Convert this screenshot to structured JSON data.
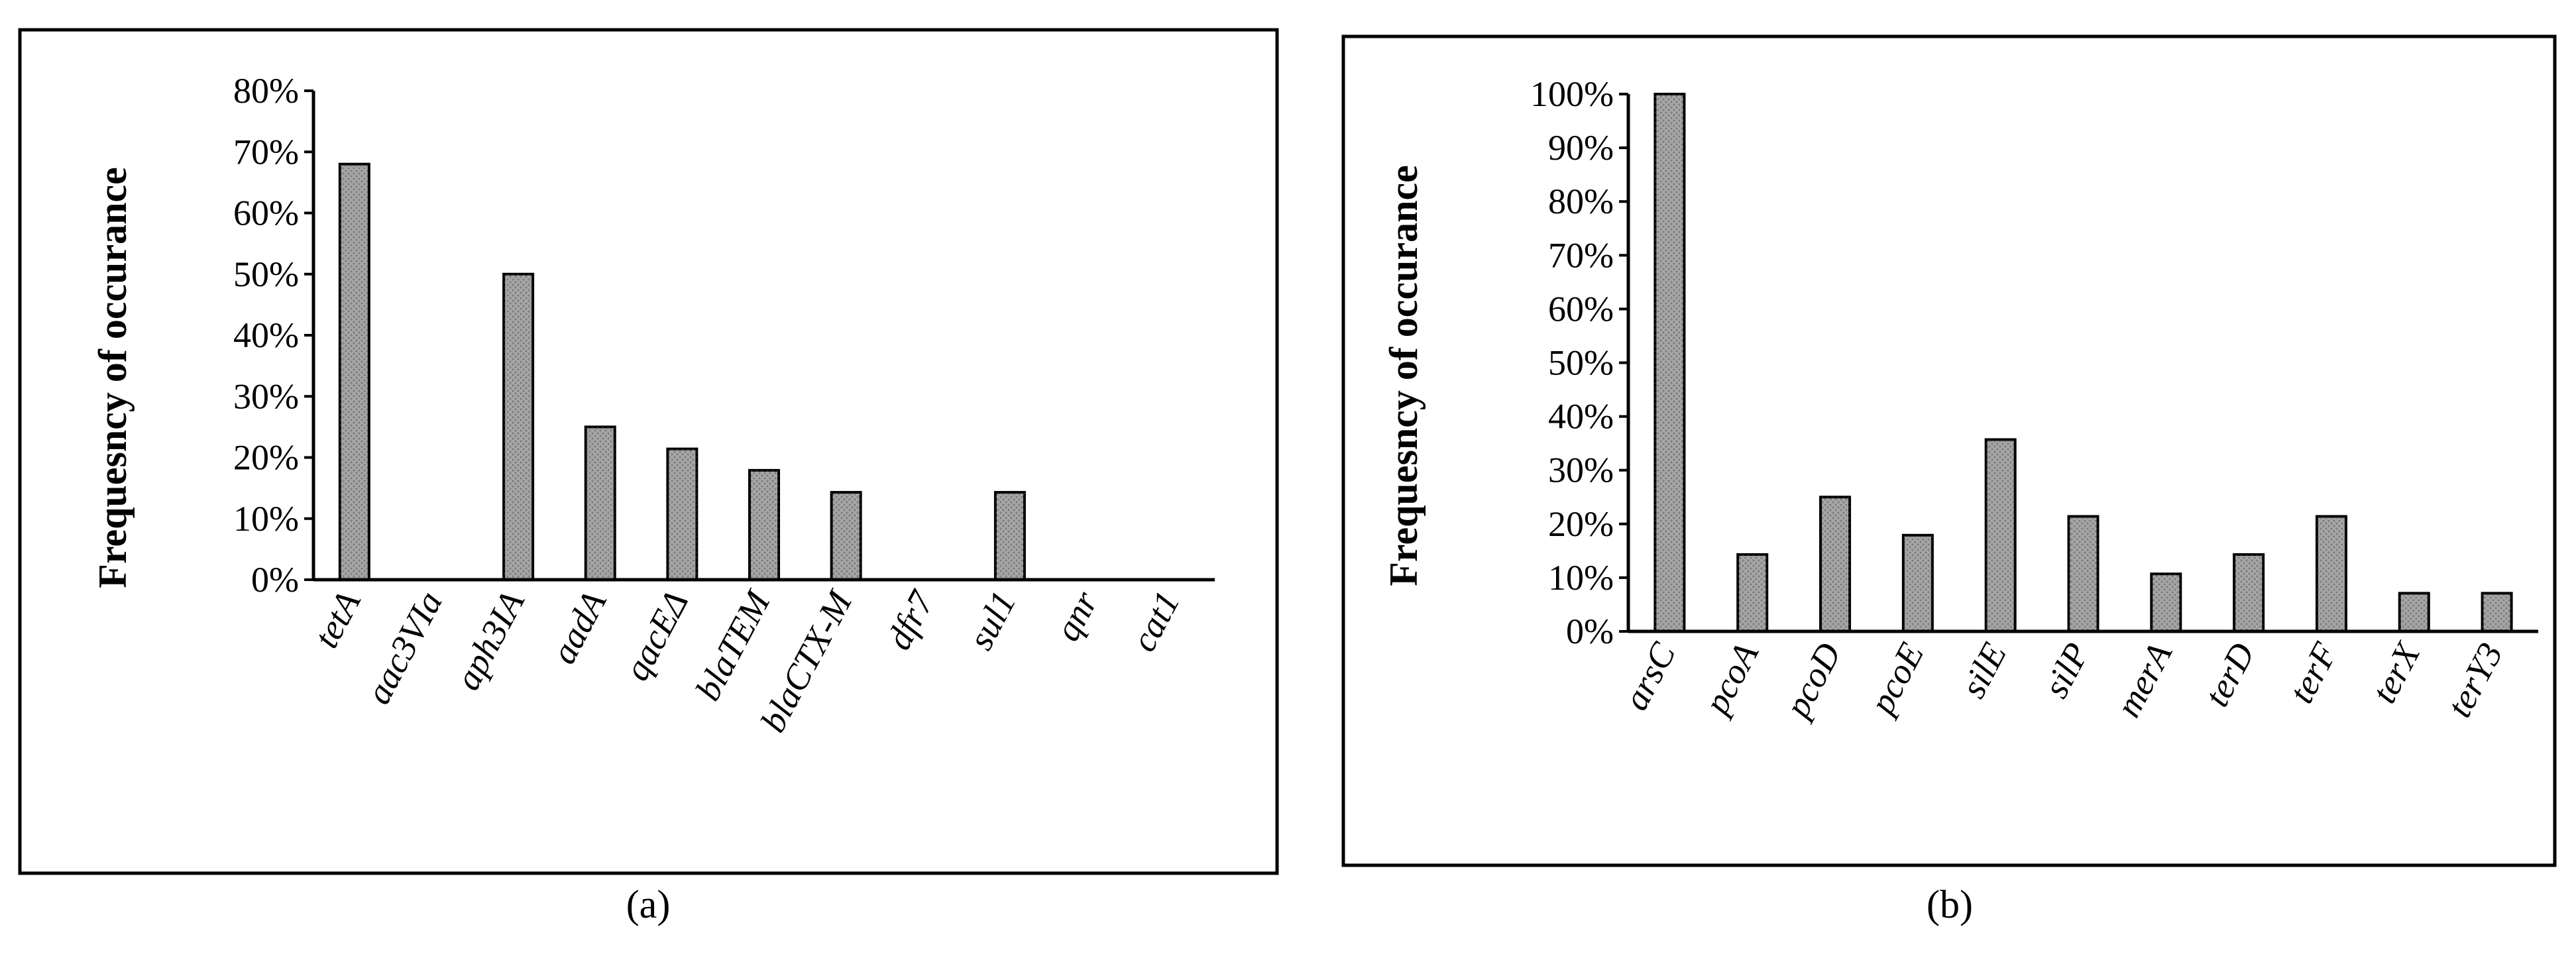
{
  "chart_data": [
    {
      "type": "bar",
      "panel_label": "(a)",
      "y_label": "Frequesncy of occurance",
      "color": "#a6a6a6",
      "categories": [
        "tetA",
        "aac3VIa",
        "aph3IA",
        "aadA",
        "qacEΔ",
        "blaTEM",
        "blaCTX-M",
        "dfr7",
        "sul1",
        "qnr",
        "cat1"
      ],
      "values": [
        68,
        0,
        50,
        25,
        21.4,
        17.9,
        14.3,
        0,
        14.3,
        0,
        0
      ],
      "ylim": [
        0,
        80
      ],
      "yticks": [
        {
          "value": 0,
          "label": "0%"
        },
        {
          "value": 10,
          "label": "10%"
        },
        {
          "value": 20,
          "label": "20%"
        },
        {
          "value": 30,
          "label": "30%"
        },
        {
          "value": 40,
          "label": "40%"
        },
        {
          "value": 50,
          "label": "50%"
        },
        {
          "value": 60,
          "label": "60%"
        },
        {
          "value": 70,
          "label": "70%"
        },
        {
          "value": 80,
          "label": "80%"
        }
      ]
    },
    {
      "type": "bar",
      "panel_label": "(b)",
      "y_label": "Frequesncy of occurance",
      "color": "#a6a6a6",
      "categories": [
        "arsC",
        "pcoA",
        "pcoD",
        "pcoE",
        "silE",
        "silP",
        "merA",
        "terD",
        "terF",
        "terX",
        "terY3"
      ],
      "values": [
        100,
        14.3,
        25,
        17.9,
        35.7,
        21.4,
        10.7,
        14.3,
        21.4,
        7.1,
        7.1
      ],
      "ylim": [
        0,
        100
      ],
      "yticks": [
        {
          "value": 0,
          "label": "0%"
        },
        {
          "value": 10,
          "label": "10%"
        },
        {
          "value": 20,
          "label": "20%"
        },
        {
          "value": 30,
          "label": "30%"
        },
        {
          "value": 40,
          "label": "40%"
        },
        {
          "value": 50,
          "label": "50%"
        },
        {
          "value": 60,
          "label": "60%"
        },
        {
          "value": 70,
          "label": "70%"
        },
        {
          "value": 80,
          "label": "80%"
        },
        {
          "value": 90,
          "label": "90%"
        },
        {
          "value": 100,
          "label": "100%"
        }
      ]
    }
  ]
}
